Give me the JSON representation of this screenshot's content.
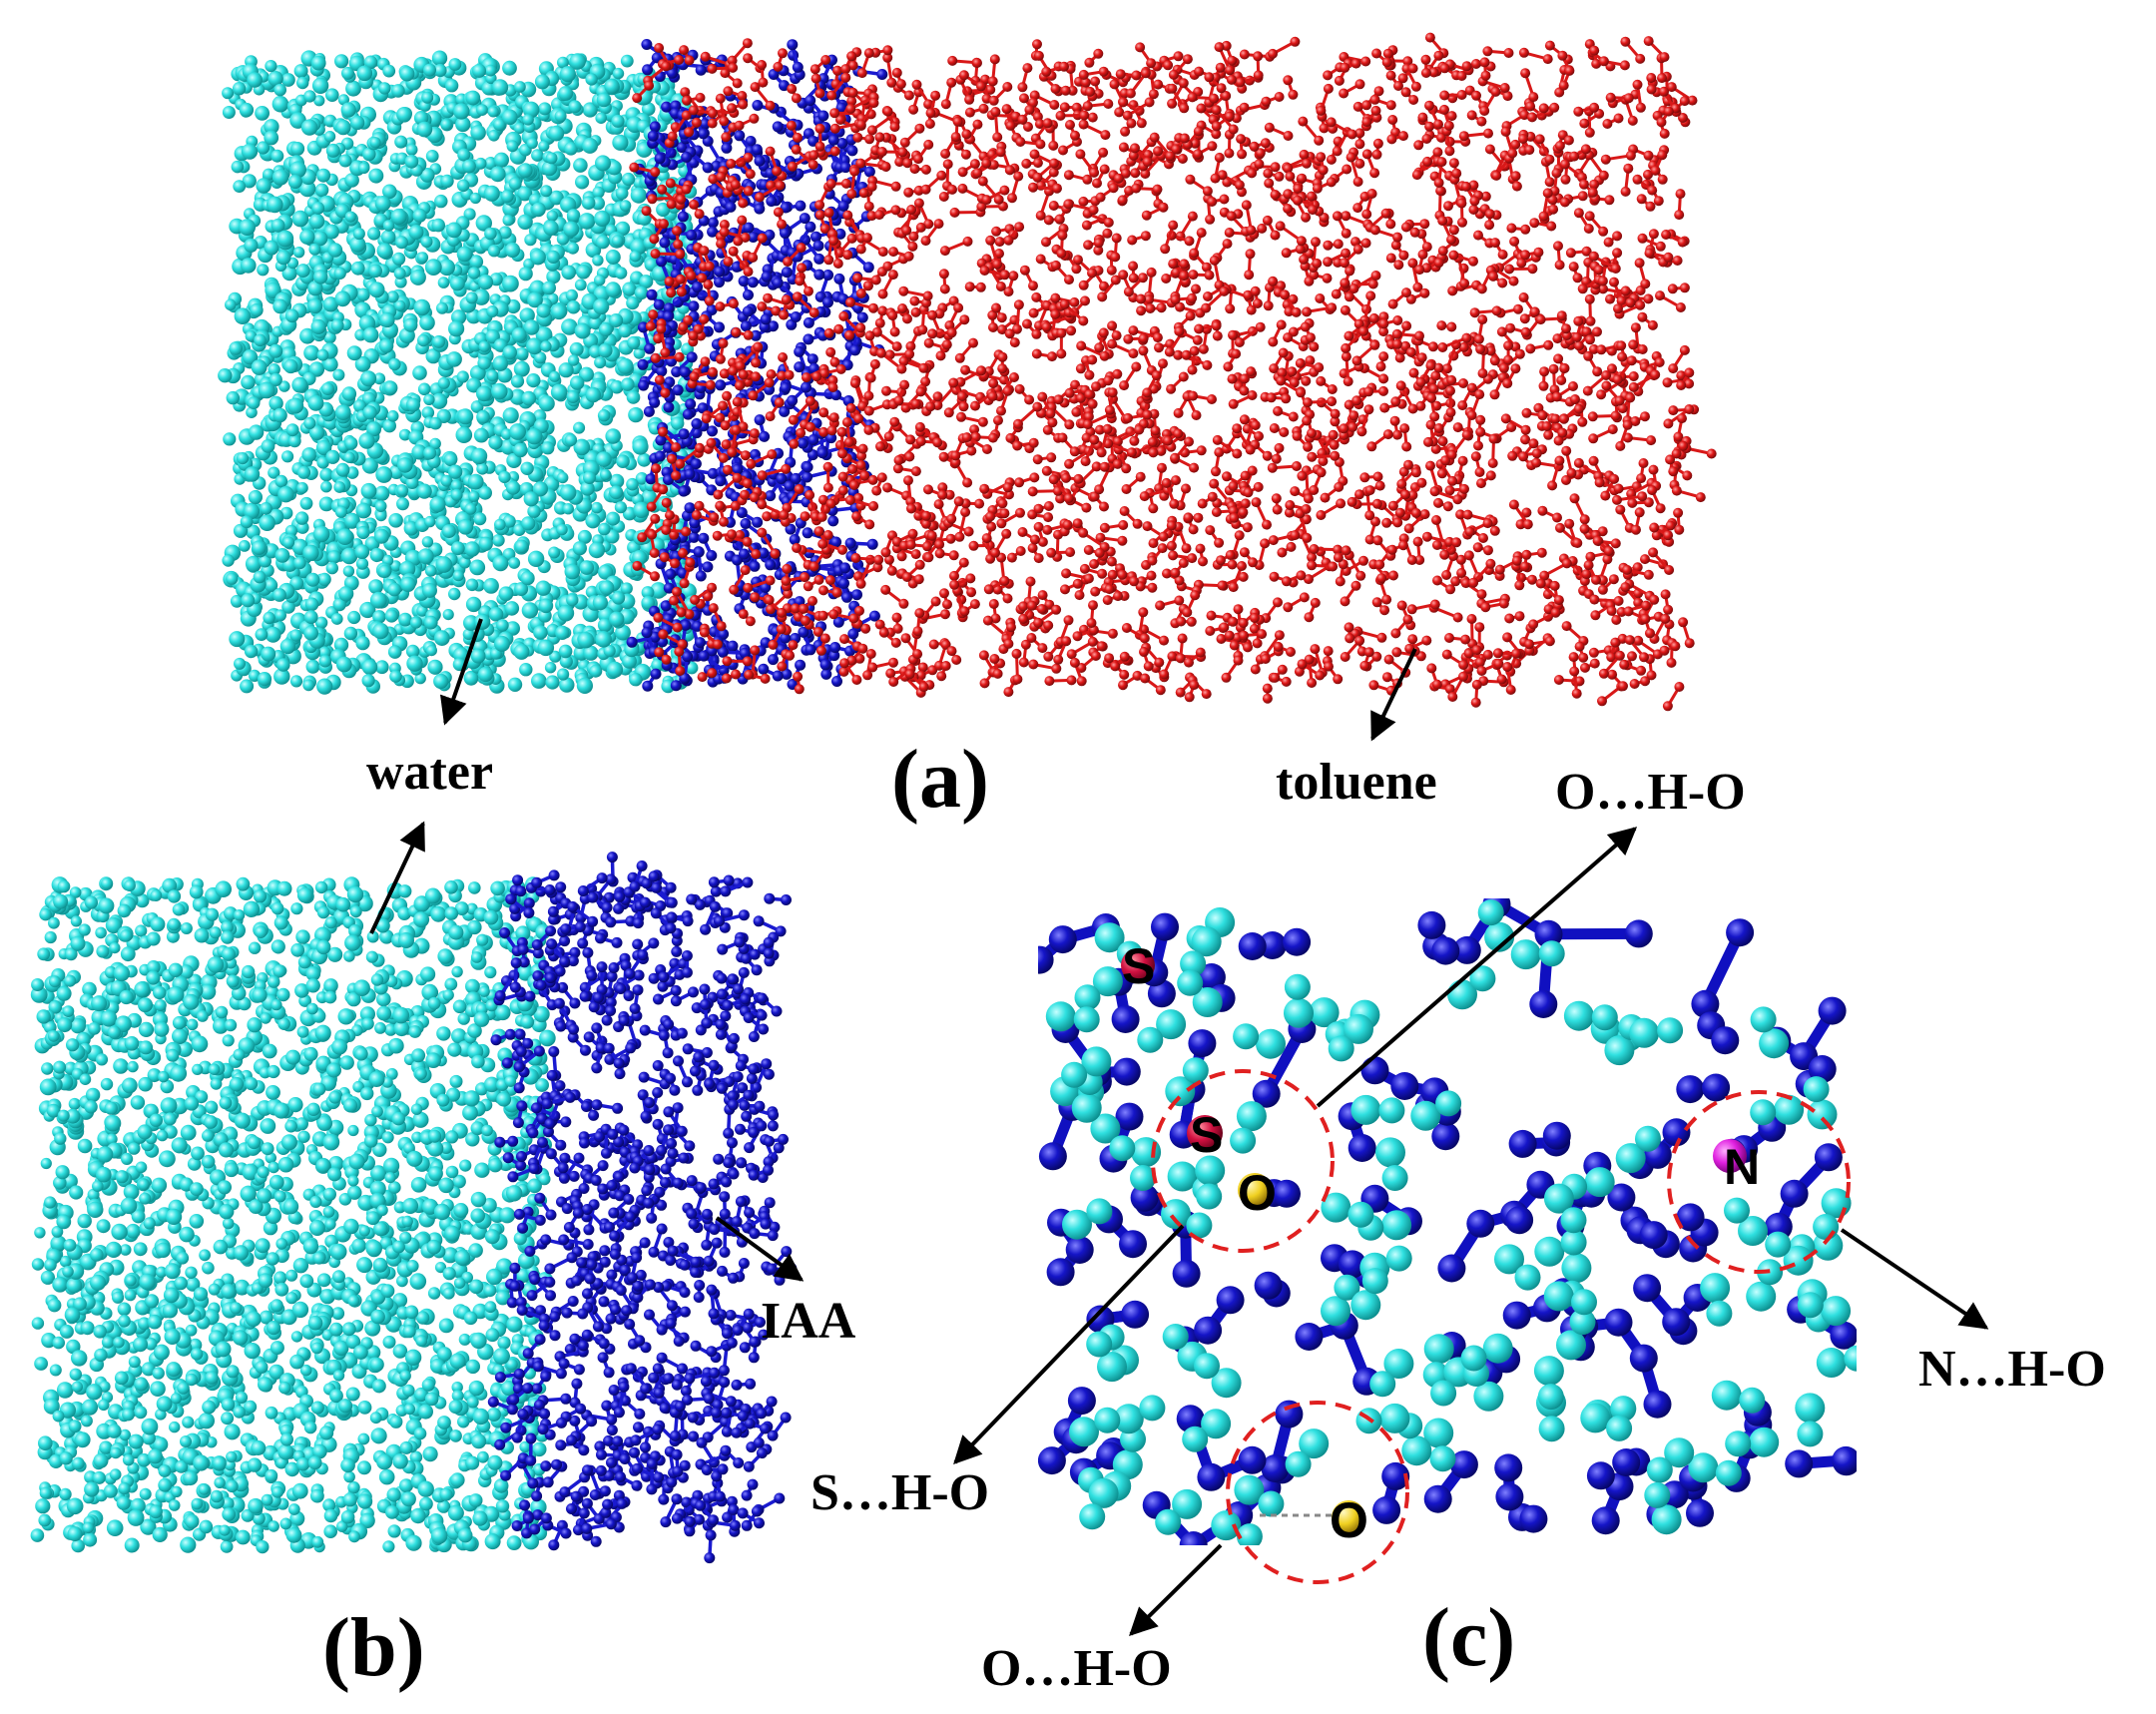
{
  "panels": {
    "a": {
      "letter": "(a)"
    },
    "b": {
      "letter": "(b)"
    },
    "c": {
      "letter": "(c)"
    }
  },
  "callouts": {
    "water_a": "water",
    "toluene": "toluene",
    "iaa": "IAA",
    "o_h_o_top": "O…H-O",
    "s_h_o": "S…H-O",
    "n_h_o": "N…H-O",
    "o_h_o_bottom": "O…H-O"
  },
  "atom_labels": {
    "s_top": "S",
    "s_mid": "S",
    "o_mid": "O",
    "n": "N",
    "o_bottom": "O"
  },
  "colors": {
    "water": "#2fe0e0",
    "iaa": "#1515c8",
    "toluene": "#e01818",
    "highlight_circle": "#e02020",
    "sulfur_atom": "#d01040",
    "oxygen_atom": "#f0d020",
    "nitrogen_atom": "#e020e0"
  }
}
